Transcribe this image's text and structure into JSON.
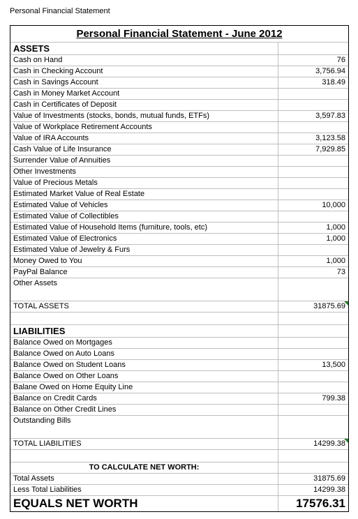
{
  "page_label": "Personal Financial Statement",
  "title": "Personal Financial Statement - June 2012",
  "assets": {
    "header": "ASSETS",
    "rows": [
      {
        "label": "Cash on Hand",
        "value": "76"
      },
      {
        "label": "Cash in Checking Account",
        "value": "3,756.94"
      },
      {
        "label": "Cash in Savings Account",
        "value": "318.49"
      },
      {
        "label": "Cash in Money Market Account",
        "value": ""
      },
      {
        "label": "Cash in Certificates of Deposit",
        "value": ""
      },
      {
        "label": "Value of Investments (stocks, bonds, mutual funds, ETFs)",
        "value": "3,597.83"
      },
      {
        "label": "Value of Workplace Retirement Accounts",
        "value": ""
      },
      {
        "label": "Value of IRA Accounts",
        "value": "3,123.58"
      },
      {
        "label": "Cash Value of Life Insurance",
        "value": "7,929.85"
      },
      {
        "label": "Surrender Value of Annuities",
        "value": ""
      },
      {
        "label": "Other Investments",
        "value": ""
      },
      {
        "label": "Value of Precious Metals",
        "value": ""
      },
      {
        "label": "Estimated Market Value of Real Estate",
        "value": ""
      },
      {
        "label": "Estimated Value of Vehicles",
        "value": "10,000"
      },
      {
        "label": "Estimated Value of Collectibles",
        "value": ""
      },
      {
        "label": "Estimated Value of Household Items (furniture, tools, etc)",
        "value": "1,000"
      },
      {
        "label": "Estimated Value of Electronics",
        "value": "1,000"
      },
      {
        "label": "Estimated Value of Jewelry & Furs",
        "value": ""
      },
      {
        "label": "Money Owed to You",
        "value": "1,000"
      },
      {
        "label": "PayPal Balance",
        "value": "73"
      },
      {
        "label": "Other Assets",
        "value": ""
      }
    ],
    "total_label": "TOTAL ASSETS",
    "total_value": "31875.69"
  },
  "liabilities": {
    "header": "LIABILITIES",
    "rows": [
      {
        "label": "Balance Owed on Mortgages",
        "value": ""
      },
      {
        "label": "Balance Owed on Auto Loans",
        "value": ""
      },
      {
        "label": "Balance Owed on Student Loans",
        "value": "13,500"
      },
      {
        "label": "Balance Owed on Other Loans",
        "value": ""
      },
      {
        "label": "Balane Owed on Home Equity Line",
        "value": ""
      },
      {
        "label": "Balance on Credit Cards",
        "value": "799.38"
      },
      {
        "label": "Balance on Other Credit Lines",
        "value": ""
      },
      {
        "label": "Outstanding Bills",
        "value": ""
      }
    ],
    "total_label": "TOTAL LIABILITIES",
    "total_value": "14299.38"
  },
  "networth": {
    "calc_header": "TO CALCULATE NET WORTH:",
    "ta_label": "Total Assets",
    "ta_value": "31875.69",
    "tl_label": "Less Total Liabilities",
    "tl_value": "14299.38",
    "nw_label": "EQUALS NET WORTH",
    "nw_value": "17576.31"
  },
  "colors": {
    "border": "#000000",
    "grid": "#bfbfbf",
    "marker": "#2e7d32",
    "background": "#ffffff"
  }
}
